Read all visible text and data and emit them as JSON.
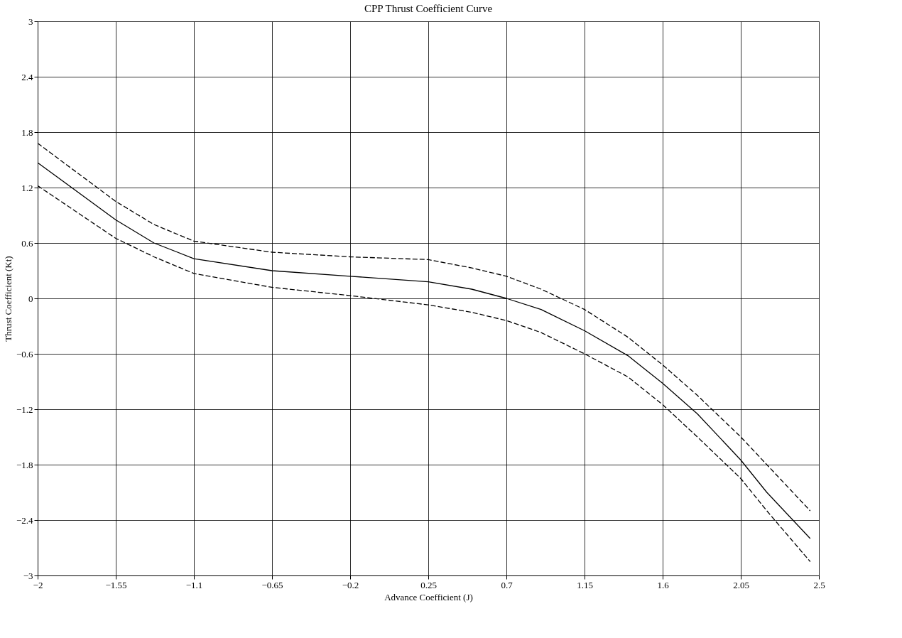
{
  "chart_data": {
    "type": "line",
    "title": "CPP Thrust Coefficient Curve",
    "xlabel": "Advance Coefficient (J)",
    "ylabel": "Thrust Coefficient (Kt)",
    "x": [
      -2,
      -1.55,
      -1.33,
      -1.1,
      -0.65,
      -0.2,
      0.25,
      0.5,
      0.7,
      0.9,
      1.15,
      1.4,
      1.6,
      1.8,
      2.05,
      2.2,
      2.45
    ],
    "series": [
      {
        "color": "#000000",
        "line_style": "solid",
        "values": [
          1.47,
          0.85,
          0.6,
          0.43,
          0.3,
          0.24,
          0.18,
          0.1,
          0.0,
          -0.12,
          -0.35,
          -0.62,
          -0.92,
          -1.25,
          -1.75,
          -2.1,
          -2.6
        ]
      },
      {
        "color": "#000000",
        "line_style": "dashed",
        "values": [
          1.68,
          1.05,
          0.8,
          0.62,
          0.5,
          0.45,
          0.42,
          0.33,
          0.24,
          0.1,
          -0.12,
          -0.42,
          -0.72,
          -1.05,
          -1.5,
          -1.8,
          -2.3
        ]
      },
      {
        "color": "#000000",
        "line_style": "dashed",
        "values": [
          1.22,
          0.65,
          0.45,
          0.27,
          0.12,
          0.03,
          -0.07,
          -0.15,
          -0.24,
          -0.37,
          -0.6,
          -0.85,
          -1.15,
          -1.5,
          -1.95,
          -2.3,
          -2.85
        ]
      }
    ],
    "xlim": [
      -2,
      2.5
    ],
    "xticks": [
      -2,
      -1.55,
      -1.1,
      -0.65,
      -0.2,
      0.25,
      0.7,
      1.15,
      1.6,
      2.05,
      2.5
    ],
    "ylim": [
      -3,
      3
    ],
    "yticks": [
      -3,
      -2.4,
      -1.8,
      -1.2,
      -0.6,
      0,
      0.6,
      1.2,
      1.8,
      2.4,
      3
    ],
    "grid": true,
    "marker": "none"
  }
}
